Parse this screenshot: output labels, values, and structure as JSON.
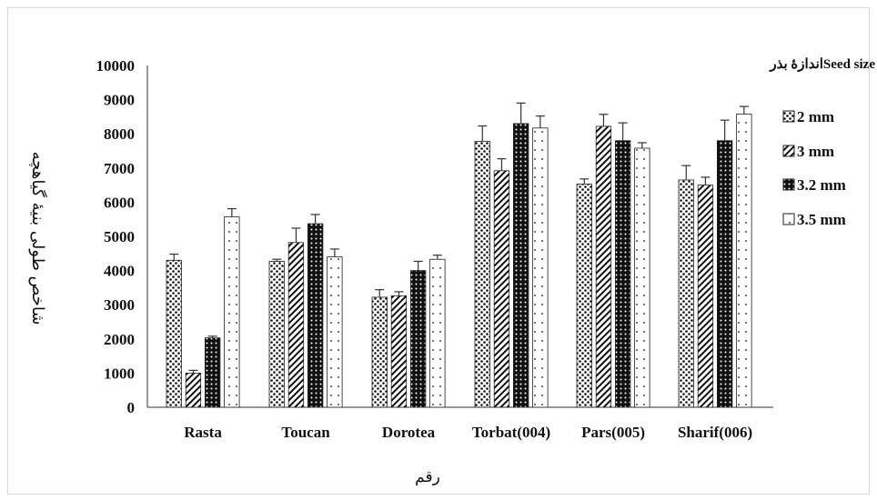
{
  "chart_data": {
    "type": "bar",
    "ylabel": "شاخص طولی بنیهٔ گیاهچه",
    "xlabel": "رقم",
    "legend_title": "اندازهٔ بذرSeed size",
    "legend_position": "right",
    "ylim": [
      0,
      10000
    ],
    "yticks": [
      "0",
      "1000",
      "2000",
      "3000",
      "4000",
      "5000",
      "6000",
      "7000",
      "8000",
      "9000",
      "10000"
    ],
    "grid": false,
    "categories": [
      "Rasta",
      "Toucan",
      "Dorotea",
      "Torbat(004)",
      "Pars(005)",
      "Sharif(006)"
    ],
    "series": [
      {
        "name": "2 mm",
        "pattern": "dots",
        "values": [
          4300,
          4270,
          3220,
          7780,
          6530,
          6650
        ],
        "errors": [
          180,
          60,
          220,
          450,
          150,
          420
        ]
      },
      {
        "name": "3 mm",
        "pattern": "diagonal",
        "values": [
          1000,
          4820,
          3260,
          6920,
          8220,
          6500
        ],
        "errors": [
          80,
          420,
          120,
          350,
          350,
          230
        ]
      },
      {
        "name": "3.2 mm",
        "pattern": "dark",
        "values": [
          2030,
          5370,
          4000,
          8300,
          7800,
          7800
        ],
        "errors": [
          50,
          270,
          270,
          600,
          520,
          600
        ]
      },
      {
        "name": "3.5 mm",
        "pattern": "sparse",
        "values": [
          5570,
          4400,
          4330,
          8170,
          7580,
          8580
        ],
        "errors": [
          240,
          230,
          120,
          350,
          160,
          220
        ]
      }
    ]
  }
}
